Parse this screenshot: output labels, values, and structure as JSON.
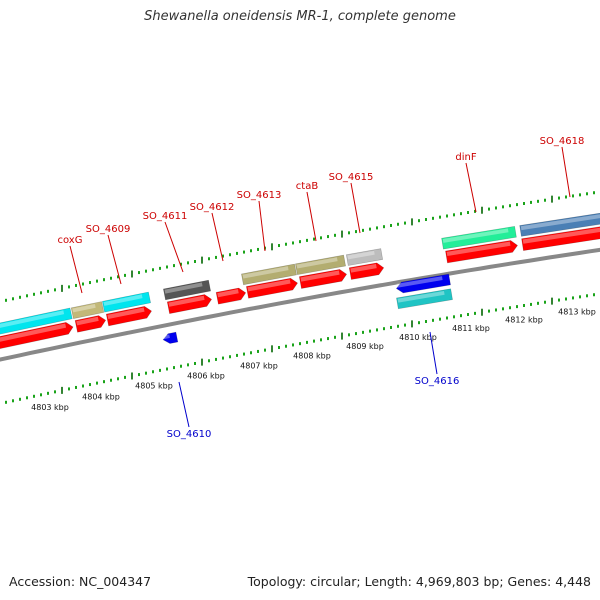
{
  "title": "Shewanella oneidensis MR-1, complete genome",
  "footer": {
    "accession": "Accession: NC_004347",
    "summary": "Topology: circular; Length: 4,969,803 bp; Genes: 4,448"
  },
  "colors": {
    "forward_label": "#cc0000",
    "reverse_label": "#0000cc",
    "cds": "#ff0000",
    "cds_reverse": "#0000ee",
    "tick_major": "#006600",
    "tick_minor": "#009900",
    "backbone": "#888888"
  },
  "kbp_labels": [
    "4803 kbp",
    "4804 kbp",
    "4805 kbp",
    "4806 kbp",
    "4807 kbp",
    "4808 kbp",
    "4809 kbp",
    "4810 kbp",
    "4811 kbp",
    "4812 kbp",
    "4813 kbp"
  ],
  "forward_gene_labels": [
    "coxG",
    "SO_4609",
    "SO_4611",
    "SO_4612",
    "SO_4613",
    "ctaB",
    "SO_4615",
    "dinF",
    "SO_4618"
  ],
  "reverse_gene_labels": [
    "SO_4610",
    "SO_4616"
  ],
  "feature_colors": [
    "#00e5ee",
    "#c2b878",
    "#555555",
    "#b3ad70",
    "#bdbdbd",
    "#22ee99",
    "#4a7fb5",
    "#20c4c4"
  ]
}
